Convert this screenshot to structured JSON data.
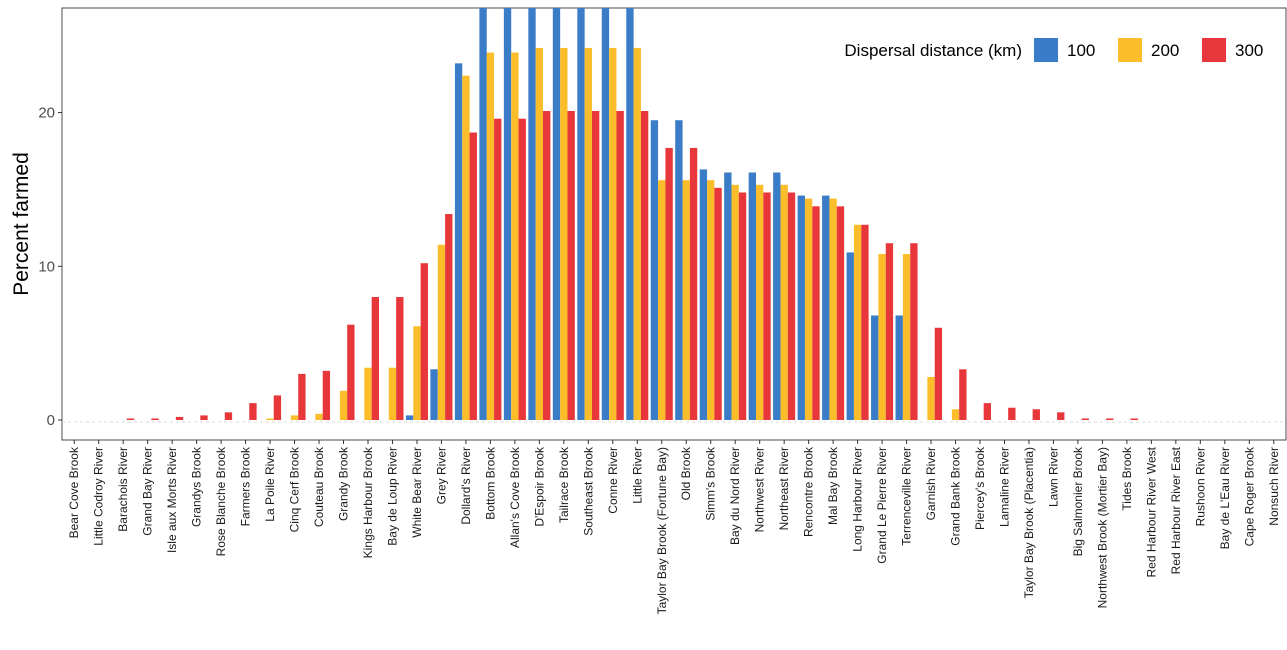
{
  "chart_data": {
    "type": "bar",
    "title": "",
    "xlabel": "",
    "ylabel": "Percent farmed",
    "ylim": [
      -1.3,
      26.8
    ],
    "yticks": [
      0,
      10,
      20
    ],
    "grid": false,
    "legend": {
      "title": "Dispersal distance (km)",
      "placement": "top-right"
    },
    "colors": {
      "100": "#3A7CC7",
      "200": "#FBBD2A",
      "300": "#E8373B"
    },
    "categories": [
      "Bear Cove Brook",
      "Little Codroy River",
      "Barachois River",
      "Grand Bay River",
      "Isle aux Morts River",
      "Grandys Brook",
      "Rose Blanche Brook",
      "Farmers Brook",
      "La Poile River",
      "Cinq Cerf Brook",
      "Couteau Brook",
      "Grandy Brook",
      "Kings Harbour Brook",
      "Bay de Loup River",
      "White Bear River",
      "Grey River",
      "Dollard's River",
      "Bottom Brook",
      "Allan's Cove Brook",
      "D'Espoir Brook",
      "Tailrace Brook",
      "Southeast Brook",
      "Conne River",
      "Little River",
      "Taylor Bay Brook (Fortune Bay)",
      "Old Brook",
      "Simm's Brook",
      "Bay du Nord River",
      "Northwest River",
      "Northeast River",
      "Rencontre Brook",
      "Mal Bay Brook",
      "Long Harbour River",
      "Grand Le Pierre River",
      "Terrenceville River",
      "Garnish River",
      "Grand Bank Brook",
      "Piercey's Brook",
      "Lamaline River",
      "Taylor Bay Brook (Placentia)",
      "Lawn River",
      "Big Salmonier Brook",
      "Northwest Brook (Mortier Bay)",
      "Tides Brook",
      "Red Harbour River West",
      "Red Harbour River East",
      "Rushoon River",
      "Bay de L'Eau River",
      "Cape Roger Brook",
      "Nonsuch River"
    ],
    "series": [
      {
        "name": "100",
        "values": [
          0,
          0,
          0,
          0,
          0,
          0,
          0,
          0,
          0,
          0,
          0,
          0,
          0,
          0,
          0.3,
          3.3,
          23.2,
          26.8,
          26.8,
          26.8,
          26.8,
          26.8,
          26.8,
          26.8,
          19.5,
          19.5,
          16.3,
          16.1,
          16.1,
          16.1,
          14.6,
          14.6,
          10.9,
          6.8,
          6.8,
          0,
          0,
          0,
          0,
          0,
          0,
          0,
          0,
          0,
          0,
          0,
          0,
          0,
          0,
          0
        ]
      },
      {
        "name": "200",
        "values": [
          0,
          0,
          0,
          0,
          0,
          0,
          0,
          0,
          0.1,
          0.3,
          0.4,
          1.9,
          3.4,
          3.4,
          6.1,
          11.4,
          22.4,
          23.9,
          23.9,
          24.2,
          24.2,
          24.2,
          24.2,
          24.2,
          15.6,
          15.6,
          15.6,
          15.3,
          15.3,
          15.3,
          14.4,
          14.4,
          12.7,
          10.8,
          10.8,
          2.8,
          0.7,
          0,
          0,
          0,
          0,
          0,
          0,
          0,
          0,
          0,
          0,
          0,
          0,
          0
        ]
      },
      {
        "name": "300",
        "values": [
          0,
          0,
          0.1,
          0.1,
          0.2,
          0.3,
          0.5,
          1.1,
          1.6,
          3.0,
          3.2,
          6.2,
          8.0,
          8.0,
          10.2,
          13.4,
          18.7,
          19.6,
          19.6,
          20.1,
          20.1,
          20.1,
          20.1,
          20.1,
          17.7,
          17.7,
          15.1,
          14.8,
          14.8,
          14.8,
          13.9,
          13.9,
          12.7,
          11.5,
          11.5,
          6.0,
          3.3,
          1.1,
          0.8,
          0.7,
          0.5,
          0.1,
          0.1,
          0.1,
          0,
          0,
          0,
          0,
          0,
          0
        ]
      }
    ]
  }
}
